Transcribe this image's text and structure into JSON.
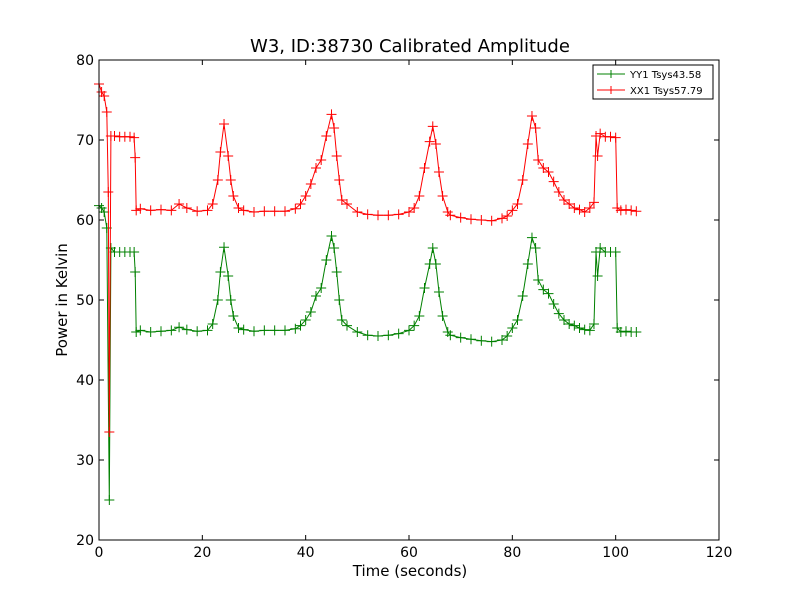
{
  "chart_data": {
    "type": "line",
    "title": "W3, ID:38730 Calibrated Amplitude",
    "xlabel": "Time (seconds)",
    "ylabel": "Power in Kelvin",
    "xlim": [
      0,
      120
    ],
    "ylim": [
      20,
      80
    ],
    "xticks": [
      0,
      20,
      40,
      60,
      80,
      100,
      120
    ],
    "yticks": [
      20,
      30,
      40,
      50,
      60,
      70,
      80
    ],
    "grid": false,
    "legend_position": "top-right",
    "marker": "+",
    "series": [
      {
        "name": "YY1 Tsys43.58",
        "color": "#008000",
        "points": [
          [
            0.0,
            61.8
          ],
          [
            0.5,
            61.5
          ],
          [
            1.0,
            61.0
          ],
          [
            1.5,
            59.0
          ],
          [
            2.0,
            25.0
          ],
          [
            2.3,
            56.5
          ],
          [
            3.0,
            56.0
          ],
          [
            4.0,
            56.0
          ],
          [
            5.0,
            56.0
          ],
          [
            6.0,
            56.0
          ],
          [
            6.8,
            56.0
          ],
          [
            7.0,
            53.5
          ],
          [
            7.2,
            46.0
          ],
          [
            8,
            46.2
          ],
          [
            10,
            46.0
          ],
          [
            12,
            46.1
          ],
          [
            14,
            46.2
          ],
          [
            15.5,
            46.6
          ],
          [
            17,
            46.3
          ],
          [
            19,
            46.1
          ],
          [
            21,
            46.2
          ],
          [
            22,
            47.0
          ],
          [
            23,
            50.0
          ],
          [
            23.5,
            53.5
          ],
          [
            24.2,
            56.6
          ],
          [
            25,
            53.0
          ],
          [
            25.5,
            50.0
          ],
          [
            26,
            48.0
          ],
          [
            27,
            46.5
          ],
          [
            28,
            46.3
          ],
          [
            30,
            46.1
          ],
          [
            32,
            46.2
          ],
          [
            34,
            46.2
          ],
          [
            36,
            46.2
          ],
          [
            38,
            46.4
          ],
          [
            39,
            46.8
          ],
          [
            40,
            47.5
          ],
          [
            41,
            48.5
          ],
          [
            42,
            50.5
          ],
          [
            43,
            51.5
          ],
          [
            44,
            55.0
          ],
          [
            45,
            58.0
          ],
          [
            45.5,
            56.5
          ],
          [
            46,
            53.5
          ],
          [
            46.5,
            50.0
          ],
          [
            47,
            47.5
          ],
          [
            48,
            46.8
          ],
          [
            50,
            46.0
          ],
          [
            52,
            45.6
          ],
          [
            54,
            45.5
          ],
          [
            56,
            45.6
          ],
          [
            58,
            45.8
          ],
          [
            60,
            46.2
          ],
          [
            61,
            46.8
          ],
          [
            62,
            48.0
          ],
          [
            63,
            51.5
          ],
          [
            64,
            54.5
          ],
          [
            64.6,
            56.5
          ],
          [
            65.2,
            54.5
          ],
          [
            65.8,
            51.0
          ],
          [
            66.5,
            48.0
          ],
          [
            67.5,
            46.0
          ],
          [
            68,
            45.6
          ],
          [
            70,
            45.3
          ],
          [
            72,
            45.1
          ],
          [
            74,
            44.9
          ],
          [
            76,
            44.8
          ],
          [
            78,
            45.0
          ],
          [
            79,
            45.5
          ],
          [
            80,
            46.5
          ],
          [
            81,
            47.5
          ],
          [
            82,
            50.5
          ],
          [
            83,
            54.5
          ],
          [
            83.8,
            57.8
          ],
          [
            84.5,
            56.5
          ],
          [
            85,
            52.5
          ],
          [
            86,
            51.3
          ],
          [
            87,
            50.8
          ],
          [
            88,
            49.5
          ],
          [
            89,
            48.3
          ],
          [
            90,
            47.5
          ],
          [
            91,
            47.0
          ],
          [
            92,
            46.8
          ],
          [
            93,
            46.5
          ],
          [
            94,
            46.3
          ],
          [
            95,
            46.2
          ],
          [
            95.8,
            47.0
          ],
          [
            96.2,
            56.0
          ],
          [
            96.5,
            53.0
          ],
          [
            97,
            56.5
          ],
          [
            98,
            56.0
          ],
          [
            99,
            56.0
          ],
          [
            100,
            56.0
          ],
          [
            100.3,
            46.5
          ],
          [
            101,
            46.0
          ],
          [
            102,
            46.1
          ],
          [
            103,
            46.0
          ],
          [
            104,
            46.0
          ]
        ]
      },
      {
        "name": "XX1 Tsys57.79",
        "color": "#ff0000",
        "points": [
          [
            0.0,
            77.0
          ],
          [
            0.5,
            76.0
          ],
          [
            1.0,
            75.5
          ],
          [
            1.5,
            73.5
          ],
          [
            1.8,
            63.5
          ],
          [
            2.0,
            33.5
          ],
          [
            2.3,
            70.5
          ],
          [
            3.0,
            70.5
          ],
          [
            4.0,
            70.4
          ],
          [
            5.0,
            70.4
          ],
          [
            6.0,
            70.4
          ],
          [
            6.8,
            70.3
          ],
          [
            7.0,
            67.8
          ],
          [
            7.2,
            61.2
          ],
          [
            8,
            61.4
          ],
          [
            10,
            61.2
          ],
          [
            12,
            61.3
          ],
          [
            14,
            61.2
          ],
          [
            15.5,
            62.0
          ],
          [
            17,
            61.5
          ],
          [
            19,
            61.1
          ],
          [
            21,
            61.2
          ],
          [
            22,
            62.0
          ],
          [
            23,
            65.0
          ],
          [
            23.5,
            68.5
          ],
          [
            24.2,
            72.0
          ],
          [
            25,
            68.0
          ],
          [
            25.5,
            65.0
          ],
          [
            26,
            63.0
          ],
          [
            27,
            61.5
          ],
          [
            28,
            61.2
          ],
          [
            30,
            61.0
          ],
          [
            32,
            61.1
          ],
          [
            34,
            61.1
          ],
          [
            36,
            61.1
          ],
          [
            38,
            61.4
          ],
          [
            39,
            62.0
          ],
          [
            40,
            63.0
          ],
          [
            41,
            64.5
          ],
          [
            42,
            66.5
          ],
          [
            43,
            67.5
          ],
          [
            44,
            70.5
          ],
          [
            45,
            73.2
          ],
          [
            45.5,
            71.5
          ],
          [
            46,
            68.0
          ],
          [
            46.5,
            65.0
          ],
          [
            47,
            62.5
          ],
          [
            48,
            62.0
          ],
          [
            50,
            61.0
          ],
          [
            52,
            60.7
          ],
          [
            54,
            60.6
          ],
          [
            56,
            60.6
          ],
          [
            58,
            60.7
          ],
          [
            60,
            61.0
          ],
          [
            61,
            61.5
          ],
          [
            62,
            63.0
          ],
          [
            63,
            66.5
          ],
          [
            64,
            69.8
          ],
          [
            64.6,
            71.7
          ],
          [
            65.2,
            69.5
          ],
          [
            65.8,
            66.0
          ],
          [
            66.5,
            63.0
          ],
          [
            67.5,
            61.0
          ],
          [
            68,
            60.6
          ],
          [
            70,
            60.3
          ],
          [
            72,
            60.1
          ],
          [
            74,
            60.0
          ],
          [
            76,
            59.9
          ],
          [
            78,
            60.2
          ],
          [
            79,
            60.5
          ],
          [
            80,
            61.2
          ],
          [
            81,
            62.0
          ],
          [
            82,
            65.0
          ],
          [
            83,
            69.5
          ],
          [
            83.8,
            73.0
          ],
          [
            84.5,
            71.5
          ],
          [
            85,
            67.5
          ],
          [
            86,
            66.5
          ],
          [
            87,
            66.0
          ],
          [
            88,
            64.8
          ],
          [
            89,
            63.5
          ],
          [
            90,
            62.5
          ],
          [
            91,
            62.0
          ],
          [
            92,
            61.5
          ],
          [
            93,
            61.3
          ],
          [
            94,
            61.0
          ],
          [
            95,
            61.5
          ],
          [
            95.8,
            62.2
          ],
          [
            96.2,
            70.5
          ],
          [
            96.5,
            68.0
          ],
          [
            97,
            70.8
          ],
          [
            98,
            70.4
          ],
          [
            99,
            70.4
          ],
          [
            100,
            70.3
          ],
          [
            100.3,
            61.5
          ],
          [
            101,
            61.2
          ],
          [
            102,
            61.3
          ],
          [
            103,
            61.2
          ],
          [
            104,
            61.1
          ]
        ]
      }
    ]
  }
}
